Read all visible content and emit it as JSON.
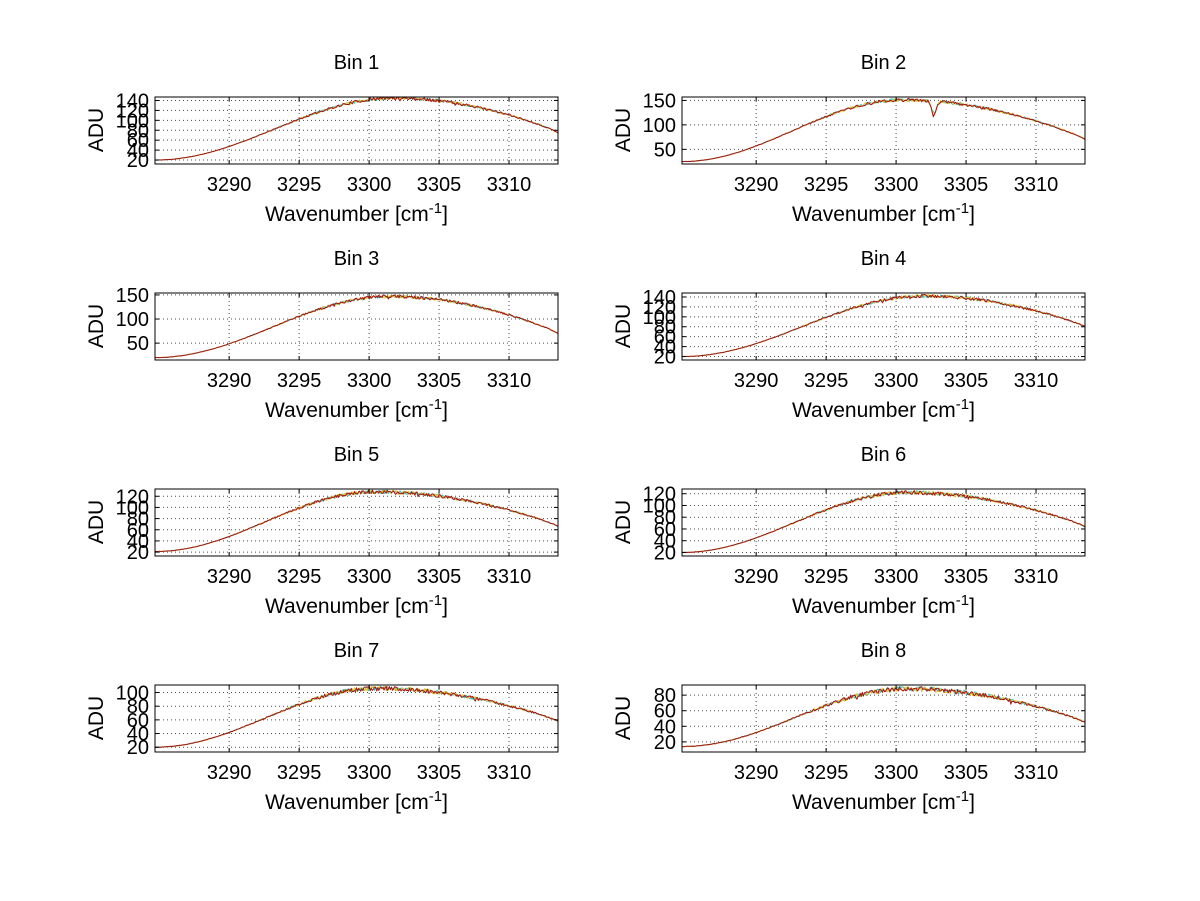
{
  "figure": {
    "background": "#ffffff",
    "axis_color": "#000000",
    "grid_color": "#4d4d4d",
    "trace_colors": {
      "primary_dark_red": "#a01616",
      "secondary_yellow": "#e6c431",
      "tertiary_cyan": "#3fbdbd"
    }
  },
  "axes_labels": {
    "ylabel": "ADU",
    "xlabel_main": "Wavenumber [cm",
    "xlabel_sup": "-1",
    "xlabel_close": "]"
  },
  "chart_data": [
    {
      "type": "line",
      "title": "Bin 1",
      "xlabel": "Wavenumber [cm-1]",
      "ylabel": "ADU",
      "grid": true,
      "xlim": [
        3284.7,
        3313.5
      ],
      "x_ticks": [
        3290,
        3295,
        3300,
        3305,
        3310
      ],
      "y_ticks": [
        20,
        40,
        60,
        80,
        100,
        120,
        140
      ],
      "ylim": [
        12,
        147
      ],
      "shape": {
        "start": 20,
        "peak": 145,
        "end": 75,
        "peak_x": 3301.8
      }
    },
    {
      "type": "line",
      "title": "Bin 2",
      "xlabel": "Wavenumber [cm-1]",
      "ylabel": "ADU",
      "grid": true,
      "xlim": [
        3284.7,
        3313.5
      ],
      "x_ticks": [
        3290,
        3295,
        3300,
        3305,
        3310
      ],
      "y_ticks": [
        50,
        100,
        150
      ],
      "ylim": [
        20,
        157
      ],
      "shape": {
        "start": 25,
        "peak": 151,
        "end": 70,
        "peak_x": 3300.5,
        "dip": {
          "x": 3302.7,
          "depth": 30,
          "width": 0.22
        }
      }
    },
    {
      "type": "line",
      "title": "Bin 3",
      "xlabel": "Wavenumber [cm-1]",
      "ylabel": "ADU",
      "grid": true,
      "xlim": [
        3284.7,
        3313.5
      ],
      "x_ticks": [
        3290,
        3295,
        3300,
        3305,
        3310
      ],
      "y_ticks": [
        50,
        100,
        150
      ],
      "ylim": [
        15,
        154
      ],
      "shape": {
        "start": 20,
        "peak": 147,
        "end": 70,
        "peak_x": 3301.5
      }
    },
    {
      "type": "line",
      "title": "Bin 4",
      "xlabel": "Wavenumber [cm-1]",
      "ylabel": "ADU",
      "grid": true,
      "xlim": [
        3284.7,
        3313.5
      ],
      "x_ticks": [
        3290,
        3295,
        3300,
        3305,
        3310
      ],
      "y_ticks": [
        20,
        40,
        60,
        80,
        100,
        120,
        140
      ],
      "ylim": [
        13,
        148
      ],
      "shape": {
        "start": 20,
        "peak": 142,
        "end": 80,
        "peak_x": 3302.0
      }
    },
    {
      "type": "line",
      "title": "Bin 5",
      "xlabel": "Wavenumber [cm-1]",
      "ylabel": "ADU",
      "grid": true,
      "xlim": [
        3284.7,
        3313.5
      ],
      "x_ticks": [
        3290,
        3295,
        3300,
        3305,
        3310
      ],
      "y_ticks": [
        20,
        40,
        60,
        80,
        100,
        120
      ],
      "ylim": [
        13,
        133
      ],
      "shape": {
        "start": 21,
        "peak": 128,
        "end": 66,
        "peak_x": 3300.5
      }
    },
    {
      "type": "line",
      "title": "Bin 6",
      "xlabel": "Wavenumber [cm-1]",
      "ylabel": "ADU",
      "grid": true,
      "xlim": [
        3284.7,
        3313.5
      ],
      "x_ticks": [
        3290,
        3295,
        3300,
        3305,
        3310
      ],
      "y_ticks": [
        20,
        40,
        60,
        80,
        100,
        120
      ],
      "ylim": [
        14,
        128
      ],
      "shape": {
        "start": 20,
        "peak": 122,
        "end": 64,
        "peak_x": 3300.8
      }
    },
    {
      "type": "line",
      "title": "Bin 7",
      "xlabel": "Wavenumber [cm-1]",
      "ylabel": "ADU",
      "grid": true,
      "xlim": [
        3284.7,
        3313.5
      ],
      "x_ticks": [
        3290,
        3295,
        3300,
        3305,
        3310
      ],
      "y_ticks": [
        20,
        40,
        60,
        80,
        100
      ],
      "ylim": [
        13,
        111
      ],
      "shape": {
        "start": 20,
        "peak": 106,
        "end": 58,
        "peak_x": 3300.5
      }
    },
    {
      "type": "line",
      "title": "Bin 8",
      "xlabel": "Wavenumber [cm-1]",
      "ylabel": "ADU",
      "grid": true,
      "xlim": [
        3284.7,
        3313.5
      ],
      "x_ticks": [
        3290,
        3295,
        3300,
        3305,
        3310
      ],
      "y_ticks": [
        20,
        40,
        60,
        80
      ],
      "ylim": [
        7,
        93
      ],
      "shape": {
        "start": 14,
        "peak": 88,
        "end": 45,
        "peak_x": 3300.8
      }
    }
  ]
}
